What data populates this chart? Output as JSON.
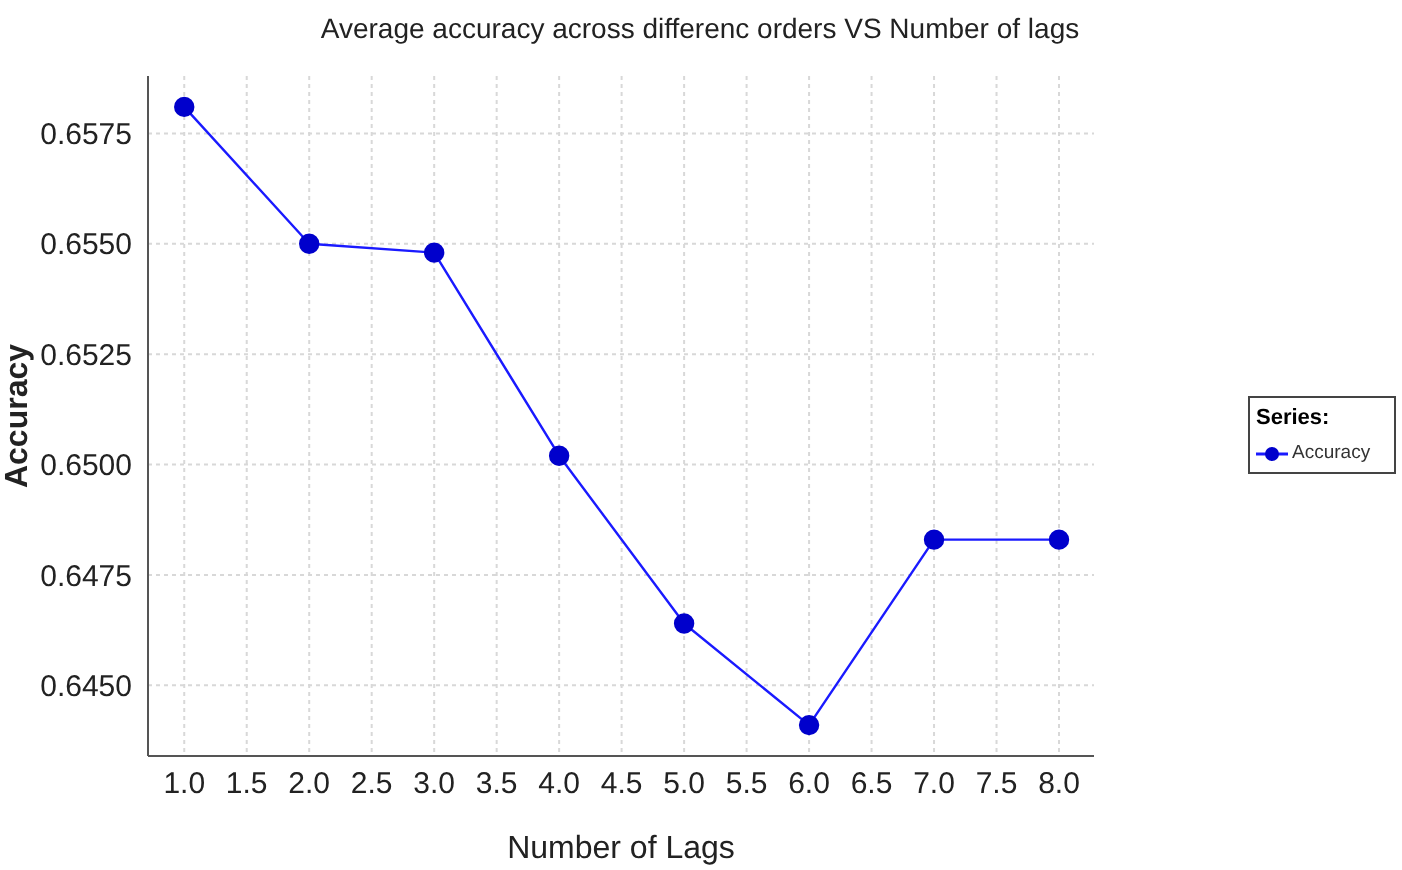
{
  "chart_data": {
    "type": "line",
    "title": "Average accuracy across differenc orders VS Number of lags",
    "xlabel": "Number of Lags",
    "ylabel": "Accuracy",
    "legend_title": "Series:",
    "x": [
      1,
      2,
      3,
      4,
      5,
      6,
      7,
      8
    ],
    "series": [
      {
        "name": "Accuracy",
        "color": "#1a1aff",
        "values": [
          0.6581,
          0.655,
          0.6548,
          0.6502,
          0.6464,
          0.6441,
          0.6483,
          0.6483
        ]
      }
    ],
    "xlim": [
      0.71,
      8.28
    ],
    "xticks": [
      {
        "value": 1,
        "label": "1.0"
      },
      {
        "value": 1.5,
        "label": "1.5"
      },
      {
        "value": 2,
        "label": "2.0"
      },
      {
        "value": 2.5,
        "label": "2.5"
      },
      {
        "value": 3,
        "label": "3.0"
      },
      {
        "value": 3.5,
        "label": "3.5"
      },
      {
        "value": 4,
        "label": "4.0"
      },
      {
        "value": 4.5,
        "label": "4.5"
      },
      {
        "value": 5,
        "label": "5.0"
      },
      {
        "value": 5.5,
        "label": "5.5"
      },
      {
        "value": 6,
        "label": "6.0"
      },
      {
        "value": 6.5,
        "label": "6.5"
      },
      {
        "value": 7,
        "label": "7.0"
      },
      {
        "value": 7.5,
        "label": "7.5"
      },
      {
        "value": 8,
        "label": "8.0"
      }
    ],
    "ylim": [
      0.6434,
      0.6588
    ],
    "yticks": [
      {
        "value": 0.645,
        "label": "0.6450"
      },
      {
        "value": 0.6475,
        "label": "0.6475"
      },
      {
        "value": 0.65,
        "label": "0.6500"
      },
      {
        "value": 0.6525,
        "label": "0.6525"
      },
      {
        "value": 0.655,
        "label": "0.6550"
      },
      {
        "value": 0.6575,
        "label": "0.6575"
      }
    ],
    "grid": true,
    "legend": "right",
    "marker": "circle",
    "line_style": "solid"
  }
}
